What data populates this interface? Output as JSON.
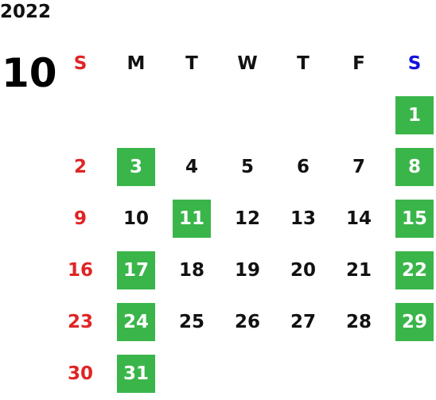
{
  "header": {
    "year": "2022",
    "month": "10"
  },
  "weekdays": [
    "S",
    "M",
    "T",
    "W",
    "T",
    "F",
    "S"
  ],
  "weeks": [
    [
      null,
      null,
      null,
      null,
      null,
      null,
      {
        "day": 1,
        "highlight": true
      }
    ],
    [
      {
        "day": 2,
        "highlight": false
      },
      {
        "day": 3,
        "highlight": true
      },
      {
        "day": 4,
        "highlight": false
      },
      {
        "day": 5,
        "highlight": false
      },
      {
        "day": 6,
        "highlight": false
      },
      {
        "day": 7,
        "highlight": false
      },
      {
        "day": 8,
        "highlight": true
      }
    ],
    [
      {
        "day": 9,
        "highlight": false
      },
      {
        "day": 10,
        "highlight": false
      },
      {
        "day": 11,
        "highlight": true
      },
      {
        "day": 12,
        "highlight": false
      },
      {
        "day": 13,
        "highlight": false
      },
      {
        "day": 14,
        "highlight": false
      },
      {
        "day": 15,
        "highlight": true
      }
    ],
    [
      {
        "day": 16,
        "highlight": false
      },
      {
        "day": 17,
        "highlight": true
      },
      {
        "day": 18,
        "highlight": false
      },
      {
        "day": 19,
        "highlight": false
      },
      {
        "day": 20,
        "highlight": false
      },
      {
        "day": 21,
        "highlight": false
      },
      {
        "day": 22,
        "highlight": true
      }
    ],
    [
      {
        "day": 23,
        "highlight": false
      },
      {
        "day": 24,
        "highlight": true
      },
      {
        "day": 25,
        "highlight": false
      },
      {
        "day": 26,
        "highlight": false
      },
      {
        "day": 27,
        "highlight": false
      },
      {
        "day": 28,
        "highlight": false
      },
      {
        "day": 29,
        "highlight": true
      }
    ],
    [
      {
        "day": 30,
        "highlight": false
      },
      {
        "day": 31,
        "highlight": true
      },
      null,
      null,
      null,
      null,
      null
    ]
  ]
}
